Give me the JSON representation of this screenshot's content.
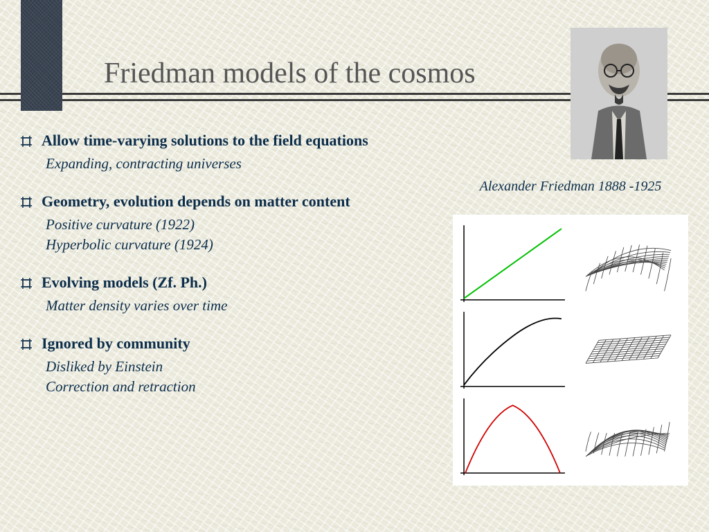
{
  "title": "Friedman models of the cosmos",
  "caption": "Alexander Friedman 1888 -1925",
  "theme": {
    "background_color": "#eae9db",
    "accent_block_color": "#3a4452",
    "rule_color": "#3a3a3a",
    "title_color": "#555555",
    "title_fontsize": 42,
    "text_color": "#0c2d4a",
    "lead_fontsize": 22,
    "sub_fontsize": 21
  },
  "bullets": [
    {
      "lead": "Allow time-varying solutions to the field equations",
      "subs": [
        "Expanding, contracting universes"
      ]
    },
    {
      "lead": "Geometry, evolution depends on matter content",
      "subs": [
        "Positive curvature  (1922)",
        "Hyperbolic curvature (1924)"
      ]
    },
    {
      "lead": "Evolving models (Zf. Ph.)",
      "subs": [
        "Matter density varies over time"
      ]
    },
    {
      "lead": "Ignored by community",
      "subs": [
        "Disliked by Einstein",
        "Correction and retraction"
      ]
    }
  ],
  "diagrams": {
    "rows": [
      {
        "plot": {
          "type": "line",
          "stroke": "#00c000",
          "points": [
            [
              10,
              110
            ],
            [
              150,
              10
            ]
          ]
        },
        "surface": {
          "type": "hyperbolic",
          "stroke": "#444"
        }
      },
      {
        "plot": {
          "type": "curve",
          "stroke": "#000000",
          "points": [
            [
              10,
              110
            ],
            [
              40,
              70
            ],
            [
              80,
              40
            ],
            [
              120,
              25
            ],
            [
              150,
              15
            ]
          ]
        },
        "surface": {
          "type": "flat",
          "stroke": "#444"
        }
      },
      {
        "plot": {
          "type": "arc",
          "stroke": "#d00000",
          "points": [
            [
              12,
              112
            ],
            [
              45,
              30
            ],
            [
              80,
              15
            ],
            [
              115,
              30
            ],
            [
              148,
              112
            ]
          ]
        },
        "surface": {
          "type": "spherical",
          "stroke": "#444"
        }
      }
    ],
    "axis_color": "#000000",
    "grid_lines": 10
  }
}
